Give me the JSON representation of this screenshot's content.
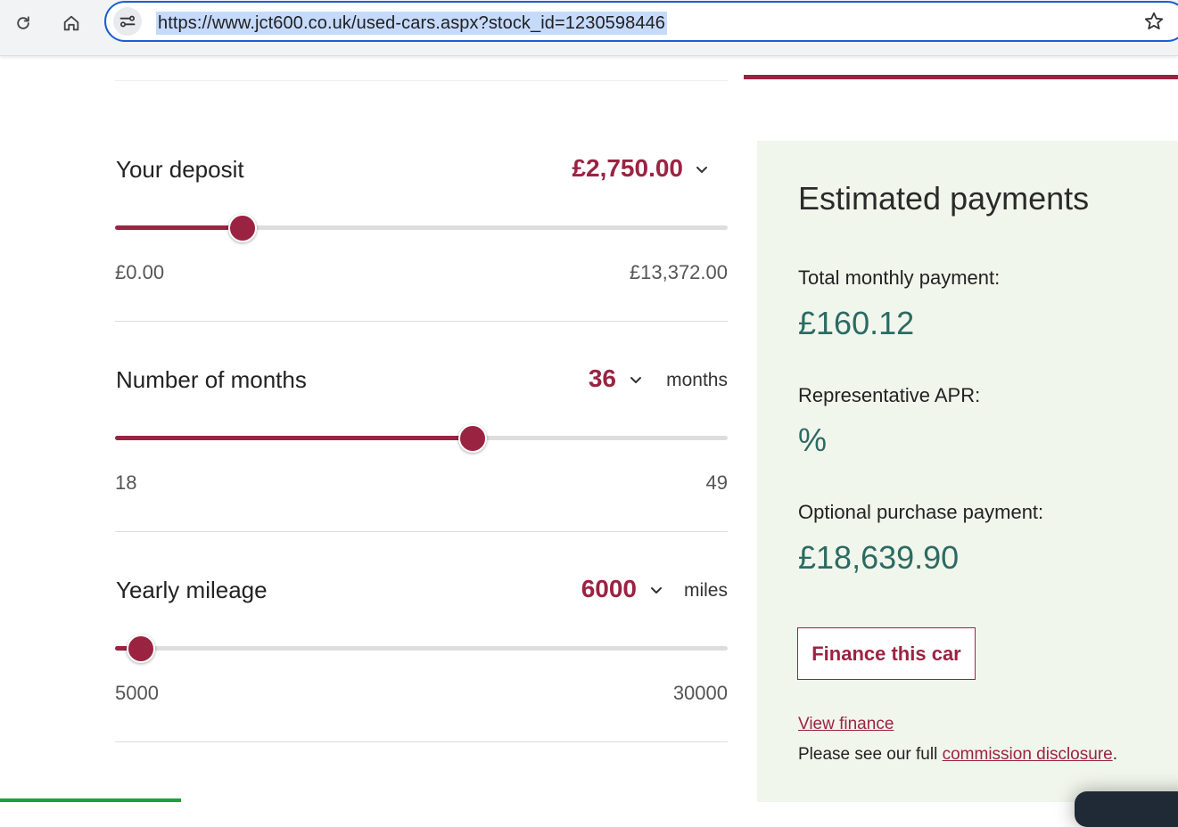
{
  "browser": {
    "url": "https://www.jct600.co.uk/used-cars.aspx?stock_id=1230598446",
    "icons": [
      "reload-icon",
      "home-icon",
      "site-info-icon",
      "bookmark-star-icon"
    ]
  },
  "calculator": {
    "deposit": {
      "title": "Your deposit",
      "value": "£2,750.00",
      "min_label": "£0.00",
      "max_label": "£13,372.00",
      "slider_fraction": 0.2057
    },
    "months": {
      "title": "Number of months",
      "value": "36",
      "unit": "months",
      "min_label": "18",
      "max_label": "49",
      "slider_fraction": 0.5806
    },
    "mileage": {
      "title": "Yearly mileage",
      "value": "6000",
      "unit": "miles",
      "min_label": "5000",
      "max_label": "30000",
      "slider_fraction": 0.04
    }
  },
  "summary": {
    "title": "Estimated payments",
    "monthly_label": "Total monthly payment:",
    "monthly_value": "£160.12",
    "apr_label": "Representative APR:",
    "apr_value": "%",
    "optional_label": "Optional purchase payment:",
    "optional_value": "£18,639.90",
    "finance_button": "Finance this car",
    "view_finance_link": "View finance",
    "disclosure_prefix": "Please see our full ",
    "disclosure_link": "commission disclosure",
    "disclosure_suffix": "."
  },
  "colors": {
    "accent": "#9b2342",
    "value_green": "#2b6b63",
    "panel_bg": "#f1f6ec",
    "track": "#dddddd",
    "omnibox_border": "#1a5fd0"
  }
}
